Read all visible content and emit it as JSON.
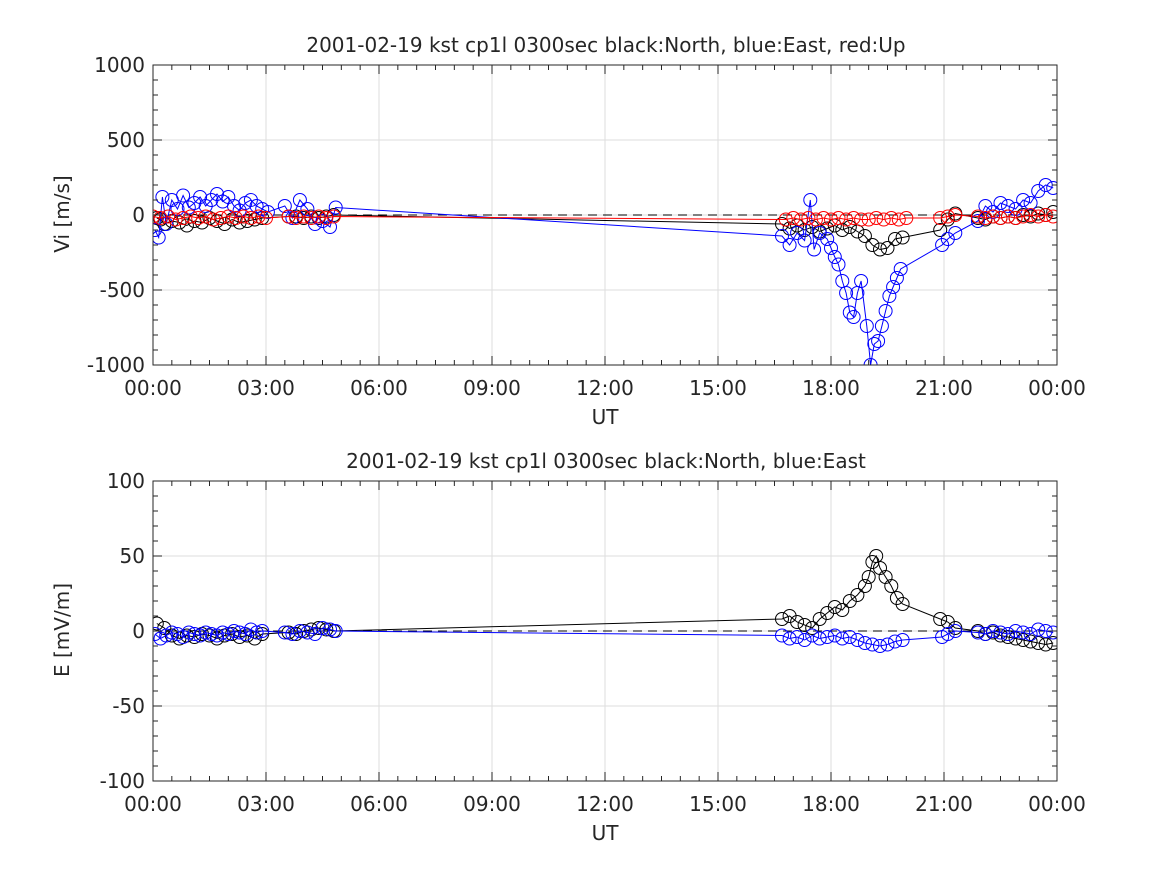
{
  "chart_data": [
    {
      "type": "line",
      "title": "2001-02-19 kst cp1l 0300sec black:North, blue:East, red:Up",
      "xlabel": "UT",
      "ylabel": "Vi [m/s]",
      "xlim": [
        0,
        24
      ],
      "ylim": [
        -1000,
        1000
      ],
      "xticklabels": [
        "00:00",
        "03:00",
        "06:00",
        "09:00",
        "12:00",
        "15:00",
        "18:00",
        "21:00",
        "00:00"
      ],
      "yticks": [
        -1000,
        -500,
        0,
        500,
        1000
      ],
      "yticklabels": [
        "-1000",
        "-500",
        "0",
        "500",
        "1000"
      ],
      "grid": true,
      "reference_line": {
        "y": 0,
        "style": "dashed"
      },
      "series": [
        {
          "key": "north",
          "color": "#000000",
          "marker": "circle",
          "x": [
            0.1,
            0.2,
            0.3,
            0.5,
            0.7,
            0.9,
            1.1,
            1.3,
            1.5,
            1.7,
            1.9,
            2.1,
            2.3,
            2.5,
            2.7,
            2.9,
            3.6,
            3.8,
            4.0,
            4.2,
            4.4,
            4.6,
            4.8,
            16.7,
            16.9,
            17.1,
            17.3,
            17.5,
            17.7,
            17.9,
            18.1,
            18.3,
            18.5,
            18.7,
            18.9,
            19.1,
            19.3,
            19.5,
            19.7,
            19.9,
            20.9,
            21.1,
            21.3,
            21.9,
            22.1,
            22.3,
            22.5,
            22.7,
            22.9,
            23.1,
            23.3,
            23.5,
            23.7,
            23.9
          ],
          "y": [
            -20,
            -30,
            -60,
            -40,
            -50,
            -70,
            -40,
            -50,
            -20,
            -40,
            -60,
            -30,
            -50,
            -40,
            -30,
            -20,
            -10,
            -10,
            -20,
            -10,
            -20,
            -10,
            0,
            -60,
            -90,
            -70,
            -100,
            -80,
            -110,
            -90,
            -70,
            -100,
            -80,
            -110,
            -140,
            -200,
            -230,
            -220,
            -160,
            -150,
            -100,
            -30,
            10,
            -20,
            -30,
            -10,
            -20,
            -10,
            -20,
            0,
            -10,
            10,
            0,
            20
          ]
        },
        {
          "key": "east",
          "color": "#0000ff",
          "marker": "circle",
          "x": [
            0.05,
            0.15,
            0.25,
            0.35,
            0.5,
            0.65,
            0.8,
            0.95,
            1.1,
            1.25,
            1.4,
            1.55,
            1.7,
            1.85,
            2.0,
            2.15,
            2.3,
            2.45,
            2.6,
            2.75,
            2.9,
            3.05,
            3.5,
            3.7,
            3.9,
            4.1,
            4.3,
            4.5,
            4.7,
            4.85,
            16.7,
            16.9,
            17.1,
            17.3,
            17.45,
            17.55,
            17.7,
            17.9,
            18.0,
            18.1,
            18.2,
            18.3,
            18.4,
            18.5,
            18.6,
            18.7,
            18.8,
            18.95,
            19.05,
            19.15,
            19.25,
            19.35,
            19.45,
            19.55,
            19.65,
            19.75,
            19.85,
            20.95,
            21.1,
            21.3,
            21.9,
            22.1,
            22.3,
            22.5,
            22.7,
            22.9,
            23.1,
            23.3,
            23.5,
            23.7,
            23.9
          ],
          "y": [
            -100,
            -150,
            120,
            -60,
            100,
            40,
            130,
            50,
            80,
            120,
            60,
            100,
            140,
            90,
            120,
            60,
            30,
            80,
            100,
            60,
            40,
            20,
            60,
            -20,
            100,
            40,
            -60,
            -40,
            -80,
            50,
            -140,
            -200,
            -120,
            -170,
            100,
            -230,
            -120,
            -160,
            -220,
            -280,
            -330,
            -440,
            -520,
            -650,
            -680,
            -520,
            -440,
            -740,
            -1000,
            -860,
            -840,
            -740,
            -640,
            -540,
            -480,
            -420,
            -360,
            -200,
            -160,
            -120,
            -40,
            60,
            20,
            80,
            60,
            40,
            100,
            80,
            160,
            200,
            180
          ]
        },
        {
          "key": "up",
          "color": "#ff0000",
          "marker": "circle",
          "x": [
            0.0,
            0.2,
            0.4,
            0.6,
            0.8,
            1.0,
            1.2,
            1.4,
            1.6,
            1.8,
            2.0,
            2.2,
            2.4,
            2.6,
            2.8,
            3.0,
            3.6,
            3.8,
            4.0,
            4.2,
            4.4,
            4.6,
            4.8,
            16.8,
            17.0,
            17.2,
            17.4,
            17.6,
            17.8,
            18.0,
            18.2,
            18.4,
            18.6,
            18.8,
            19.0,
            19.2,
            19.4,
            19.6,
            19.8,
            20.0,
            20.9,
            21.1,
            21.3,
            21.9,
            22.1,
            22.3,
            22.5,
            22.7,
            22.9,
            23.1,
            23.3,
            23.5,
            23.7,
            23.9
          ],
          "y": [
            -10,
            -20,
            -10,
            -30,
            -20,
            -10,
            -20,
            -10,
            -30,
            -20,
            -10,
            -20,
            -10,
            -20,
            -10,
            -20,
            -10,
            -20,
            -10,
            -20,
            -10,
            -20,
            -10,
            -30,
            -20,
            -30,
            -20,
            -30,
            -20,
            -30,
            -20,
            -30,
            -20,
            -30,
            -30,
            -20,
            -30,
            -20,
            -30,
            -20,
            -20,
            -10,
            0,
            -10,
            -20,
            -10,
            -20,
            -10,
            -20,
            -10,
            0,
            -10,
            0,
            -10
          ]
        }
      ]
    },
    {
      "type": "line",
      "title": "2001-02-19 kst cp1l 0300sec black:North, blue:East",
      "xlabel": "UT",
      "ylabel": "E [mV/m]",
      "xlim": [
        0,
        24
      ],
      "ylim": [
        -100,
        100
      ],
      "xticklabels": [
        "00:00",
        "03:00",
        "06:00",
        "09:00",
        "12:00",
        "15:00",
        "18:00",
        "21:00",
        "00:00"
      ],
      "yticks": [
        -100,
        -50,
        0,
        50,
        100
      ],
      "yticklabels": [
        "-100",
        "-50",
        "0",
        "50",
        "100"
      ],
      "grid": true,
      "reference_line": {
        "y": 0,
        "style": "dashed"
      },
      "series": [
        {
          "key": "north",
          "color": "#000000",
          "marker": "circle",
          "x": [
            0.1,
            0.3,
            0.5,
            0.7,
            0.9,
            1.1,
            1.3,
            1.5,
            1.7,
            1.9,
            2.1,
            2.3,
            2.5,
            2.7,
            2.9,
            3.6,
            3.8,
            4.0,
            4.2,
            4.4,
            4.6,
            4.8,
            16.7,
            16.9,
            17.1,
            17.3,
            17.5,
            17.7,
            17.9,
            18.1,
            18.3,
            18.5,
            18.7,
            18.9,
            19.0,
            19.1,
            19.2,
            19.3,
            19.45,
            19.6,
            19.75,
            19.9,
            20.9,
            21.1,
            21.3,
            21.9,
            22.1,
            22.3,
            22.5,
            22.7,
            22.9,
            23.1,
            23.3,
            23.5,
            23.7,
            23.9
          ],
          "y": [
            5,
            2,
            -3,
            -5,
            -3,
            -4,
            -2,
            -3,
            -5,
            -3,
            -2,
            -4,
            -3,
            -5,
            -2,
            -1,
            -2,
            0,
            1,
            2,
            1,
            0,
            8,
            10,
            6,
            4,
            2,
            8,
            12,
            16,
            14,
            20,
            24,
            30,
            36,
            46,
            50,
            42,
            36,
            30,
            22,
            18,
            8,
            6,
            2,
            0,
            -2,
            -1,
            -3,
            -4,
            -5,
            -6,
            -7,
            -8,
            -9,
            -8
          ]
        },
        {
          "key": "east",
          "color": "#0000ff",
          "marker": "circle",
          "x": [
            0.05,
            0.2,
            0.35,
            0.5,
            0.65,
            0.8,
            0.95,
            1.1,
            1.25,
            1.4,
            1.55,
            1.7,
            1.85,
            2.0,
            2.15,
            2.3,
            2.45,
            2.6,
            2.75,
            2.9,
            3.5,
            3.7,
            3.9,
            4.1,
            4.3,
            4.5,
            4.7,
            4.85,
            16.7,
            16.9,
            17.1,
            17.3,
            17.5,
            17.7,
            17.9,
            18.1,
            18.3,
            18.5,
            18.7,
            18.9,
            19.1,
            19.3,
            19.5,
            19.7,
            19.9,
            20.95,
            21.1,
            21.3,
            21.9,
            22.1,
            22.3,
            22.5,
            22.7,
            22.9,
            23.1,
            23.3,
            23.5,
            23.7,
            23.9
          ],
          "y": [
            -2,
            -5,
            -3,
            -1,
            -2,
            -4,
            -1,
            -2,
            -3,
            -1,
            -2,
            -3,
            -1,
            -2,
            0,
            -1,
            -2,
            1,
            -1,
            0,
            -1,
            -2,
            0,
            -1,
            -2,
            2,
            1,
            0,
            -3,
            -5,
            -4,
            -6,
            -3,
            -5,
            -4,
            -3,
            -5,
            -4,
            -6,
            -8,
            -9,
            -10,
            -9,
            -7,
            -6,
            -4,
            -2,
            0,
            -1,
            -2,
            0,
            -1,
            -2,
            0,
            -1,
            -2,
            1,
            0,
            -1
          ]
        }
      ]
    }
  ]
}
